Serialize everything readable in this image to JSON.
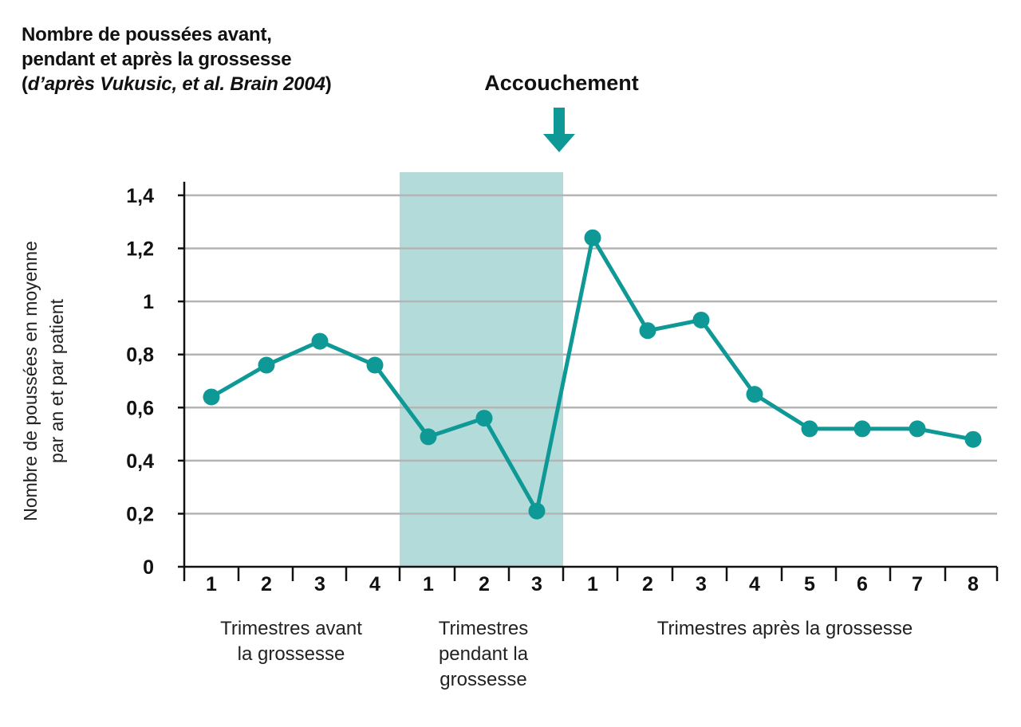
{
  "title": {
    "line1": "Nombre de poussées avant,",
    "line2": "pendant et après la grossesse",
    "line3_open": "(",
    "line3_italic": "d’après Vukusic, et al. Brain 2004",
    "line3_close": ")"
  },
  "annotation": {
    "label": "Accouchement"
  },
  "colors": {
    "series": "#0e9996",
    "band": "#b3dbd9",
    "grid": "#b4b4b4",
    "axis": "#111111"
  },
  "chart_data": {
    "type": "line",
    "ylabel_line1": "Nombre de poussées en moyenne",
    "ylabel_line2": "par an et par patient",
    "ylim": [
      0,
      1.4
    ],
    "yticks": [
      "0",
      "0,2",
      "0,4",
      "0,6",
      "0,8",
      "1",
      "1,2",
      "1,4"
    ],
    "grid": true,
    "categories": [
      "1",
      "2",
      "3",
      "4",
      "1",
      "2",
      "3",
      "1",
      "2",
      "3",
      "4",
      "5",
      "6",
      "7",
      "8"
    ],
    "groups": [
      {
        "lines": [
          "Trimestres avant",
          "la grossesse"
        ]
      },
      {
        "lines": [
          "Trimestres",
          "pendant la",
          "grossesse"
        ]
      },
      {
        "lines": [
          "Trimestres après la grossesse"
        ]
      }
    ],
    "highlight_band": {
      "from_index": 4,
      "to_index": 6
    },
    "series": [
      {
        "values": [
          0.64,
          0.76,
          0.85,
          0.76,
          0.49,
          0.56,
          0.21,
          1.24,
          0.89,
          0.93,
          0.65,
          0.52,
          0.52,
          0.52,
          0.48
        ]
      }
    ]
  }
}
